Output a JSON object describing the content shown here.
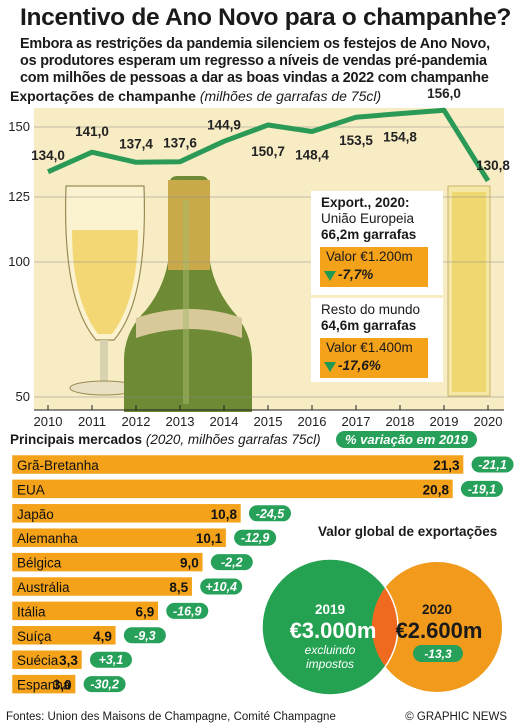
{
  "title": "Incentivo de Ano Novo para o champanhe?",
  "subtitle_lines": [
    "Embora as restrições da pandemia silenciem os festejos de Ano Novo,",
    "os produtores esperam um regresso a níveis de vendas pré-pandemia",
    "com milhões de pessoas a dar as boas vindas a 2022 com champanhe"
  ],
  "exports_header": {
    "bold": "Exportações de champanhe",
    "italic": "(milhões de garrafas de 75cl)"
  },
  "chart_data": [
    {
      "type": "line",
      "title": "Exportações de champanhe",
      "ylabel": "milhões de garrafas de 75cl",
      "x": [
        2010,
        2011,
        2012,
        2013,
        2014,
        2015,
        2016,
        2017,
        2018,
        2019,
        2020
      ],
      "series": [
        {
          "values": [
            134.0,
            141.0,
            137.4,
            137.6,
            144.9,
            150.7,
            148.4,
            153.5,
            154.8,
            156.0,
            130.8
          ]
        }
      ],
      "value_labels": [
        "134,0",
        "141,0",
        "137,4",
        "137,6",
        "144,9",
        "150,7",
        "148,4",
        "153,5",
        "154,8",
        "156,0",
        "130,8"
      ],
      "yticks": [
        50,
        100,
        125,
        150
      ],
      "ylim": [
        50,
        160
      ],
      "axis_break": "between 50 and 100 and between 100 and 125",
      "grid": false
    },
    {
      "type": "bar",
      "orientation": "horizontal",
      "title": "Principais mercados",
      "subtitle": "(2020, milhões garrafas 75cl)",
      "categories": [
        "Grã-Bretanha",
        "EUA",
        "Japão",
        "Alemanha",
        "Bélgica",
        "Austrália",
        "Itália",
        "Suíça",
        "Suécia",
        "Espanha"
      ],
      "values": [
        21.3,
        20.8,
        10.8,
        10.1,
        9.0,
        8.5,
        6.9,
        4.9,
        3.3,
        3.0
      ],
      "value_labels": [
        "21,3",
        "20,8",
        "10,8",
        "10,1",
        "9,0",
        "8,5",
        "6,9",
        "4,9",
        "3,3",
        "3,0"
      ],
      "change_header": "% variação em 2019",
      "change_2019": [
        -21.1,
        -19.1,
        -24.5,
        -12.9,
        -2.2,
        10.4,
        -16.9,
        -9.3,
        3.1,
        -30.2
      ],
      "change_labels": [
        "-21,1",
        "-19,1",
        "-24,5",
        "-12,9",
        "-2,2",
        "+10,4",
        "-16,9",
        "-9,3",
        "+3,1",
        "-30,2"
      ]
    },
    {
      "type": "venn",
      "title": "Valor global de exportações",
      "sets": [
        {
          "year": "2019",
          "value": "€3.000m",
          "note_lines": [
            "excluindo",
            "impostos"
          ]
        },
        {
          "year": "2020",
          "value": "€2.600m",
          "change": "-13,3"
        }
      ]
    }
  ],
  "info_eu": {
    "l1": "Export., 2020:",
    "l2": "União Europeia",
    "l3": "66,2m garrafas",
    "value": "Valor €1.200m",
    "change": "-7,7%"
  },
  "info_row": {
    "l1": "Resto do mundo",
    "l2": "64,6m garrafas",
    "value": "Valor €1.400m",
    "change": "-17,6%"
  },
  "footer": {
    "source": "Fontes: Union des Maisons de Champagne, Comité Champagne",
    "credit": "© GRAPHIC NEWS"
  },
  "colors": {
    "line": "#2a9a56",
    "bar": "#f4a21a",
    "pill": "#27a05a",
    "chart_bg": "#f8ecc4",
    "venn_green": "#25a152",
    "venn_orange": "#f19a1c"
  }
}
